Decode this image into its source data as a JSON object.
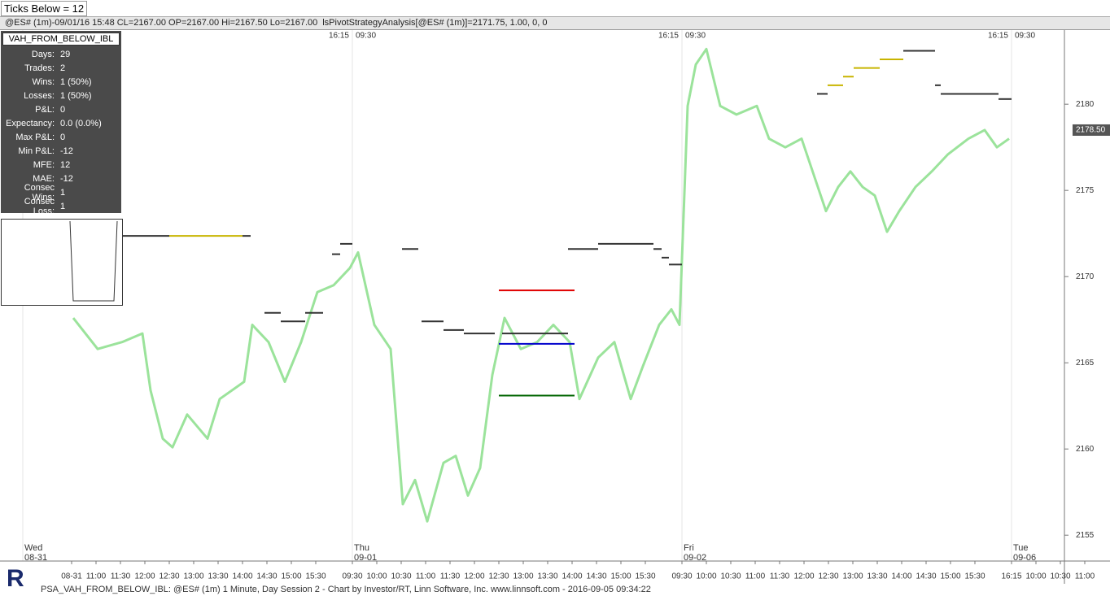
{
  "toolbar": {
    "ticks_below": "Ticks Below = 12"
  },
  "info_bar": {
    "symbol": "@ES# (1m)-09/01/16 15:48 CL=2167.00 OP=2167.00 Hi=2167.50 Lo=2167.00",
    "indicator": "lsPivotStrategyAnalysis[@ES# (1m)]=2171.75, 1.00, 0, 0"
  },
  "stats": {
    "title": "VAH_FROM_BELOW_IBL",
    "rows": [
      [
        "Days:",
        "29"
      ],
      [
        "Trades:",
        "2"
      ],
      [
        "Wins:",
        "1 (50%)"
      ],
      [
        "Losses:",
        "1 (50%)"
      ],
      [
        "P&L:",
        "0"
      ],
      [
        "Expectancy:",
        "0.0 (0.0%)"
      ],
      [
        "Max P&L:",
        "0"
      ],
      [
        "Min P&L:",
        "-12"
      ],
      [
        "MFE:",
        "12"
      ],
      [
        "MAE:",
        "-12"
      ],
      [
        "Consec Wins:",
        "1"
      ],
      [
        "Consec Loss:",
        "1"
      ]
    ]
  },
  "footer": "PSA_VAH_FROM_BELOW_IBL: @ES# (1m) 1 Minute, Day Session 2 - Chart by Investor/RT, Linn Software, Inc. www.linnsoft.com - 2016-09-05 09:34:22",
  "chart_data": {
    "type": "line",
    "x": [
      62,
      92,
      122,
      147,
      157,
      172,
      184,
      202,
      227,
      242,
      272,
      282,
      302,
      322,
      342,
      362,
      382,
      402,
      412,
      432,
      452,
      467,
      482,
      497,
      517,
      532,
      547,
      562,
      577,
      592,
      612,
      632,
      652,
      672,
      684,
      707,
      727,
      747,
      762,
      782,
      797,
      807,
      817,
      827,
      840,
      857,
      877,
      902,
      917,
      937,
      957,
      977,
      987,
      1002,
      1017,
      1032,
      1047,
      1062,
      1077,
      1097,
      1117,
      1137,
      1162,
      1182,
      1197,
      1212
    ],
    "series": [
      {
        "name": "@ES# (1m)",
        "color": "#9be39b",
        "values": [
          2167.6,
          2165.8,
          2166.2,
          2166.7,
          2163.4,
          2160.6,
          2160.1,
          2162,
          2160.6,
          2162.9,
          2163.9,
          2167.2,
          2166.2,
          2163.9,
          2166.2,
          2169.1,
          2169.5,
          2170.5,
          2171.4,
          2167.2,
          2165.8,
          2156.8,
          2158.2,
          2155.8,
          2159.2,
          2159.6,
          2157.3,
          2158.9,
          2164.3,
          2167.6,
          2165.8,
          2166.2,
          2167.2,
          2166.2,
          2162.9,
          2165.3,
          2166.2,
          2162.9,
          2164.8,
          2167.2,
          2168.1,
          2167.2,
          2179.9,
          2182.3,
          2183.2,
          2179.9,
          2179.4,
          2179.9,
          2178,
          2177.5,
          2178,
          2175.2,
          2173.8,
          2175.2,
          2176.1,
          2175.2,
          2174.7,
          2172.6,
          2173.8,
          2175.2,
          2176.1,
          2177.1,
          2178,
          2178.5,
          2177.5,
          2178
        ]
      }
    ],
    "levels": [
      {
        "start": 120,
        "end": 180,
        "value": 2172.36,
        "color": "#333333"
      },
      {
        "start": 180,
        "end": 270,
        "value": 2172.36,
        "color": "#c8b400"
      },
      {
        "start": 270,
        "end": 280,
        "value": 2172.36,
        "color": "#333333"
      },
      {
        "start": 390,
        "end": 405,
        "value": 2171.9,
        "color": "#333333"
      },
      {
        "start": 380,
        "end": 390,
        "value": 2171.3,
        "color": "#333333"
      },
      {
        "start": 466,
        "end": 486,
        "value": 2171.6,
        "color": "#333333"
      },
      {
        "start": 297,
        "end": 317,
        "value": 2167.9,
        "color": "#333333"
      },
      {
        "start": 317,
        "end": 347,
        "value": 2167.4,
        "color": "#333333"
      },
      {
        "start": 347,
        "end": 369,
        "value": 2167.9,
        "color": "#333333"
      },
      {
        "start": 490,
        "end": 517,
        "value": 2167.4,
        "color": "#333333"
      },
      {
        "start": 517,
        "end": 542,
        "value": 2166.9,
        "color": "#333333"
      },
      {
        "start": 542,
        "end": 580,
        "value": 2166.7,
        "color": "#333333"
      },
      {
        "start": 585,
        "end": 678,
        "value": 2169.2,
        "color": "#e00000"
      },
      {
        "start": 589,
        "end": 670,
        "value": 2166.7,
        "color": "#333333"
      },
      {
        "start": 585,
        "end": 678,
        "value": 2166.1,
        "color": "#0000cc"
      },
      {
        "start": 585,
        "end": 678,
        "value": 2163.1,
        "color": "#006400"
      },
      {
        "start": 670,
        "end": 707,
        "value": 2171.6,
        "color": "#333333"
      },
      {
        "start": 707,
        "end": 775,
        "value": 2171.9,
        "color": "#333333"
      },
      {
        "start": 775,
        "end": 785,
        "value": 2171.6,
        "color": "#333333"
      },
      {
        "start": 785,
        "end": 794,
        "value": 2171.1,
        "color": "#333333"
      },
      {
        "start": 794,
        "end": 810,
        "value": 2170.7,
        "color": "#333333"
      },
      {
        "start": 976,
        "end": 989,
        "value": 2180.6,
        "color": "#333333"
      },
      {
        "start": 989,
        "end": 1008,
        "value": 2181.1,
        "color": "#c8b400"
      },
      {
        "start": 1008,
        "end": 1021,
        "value": 2181.6,
        "color": "#c8b400"
      },
      {
        "start": 1021,
        "end": 1053,
        "value": 2182.1,
        "color": "#c8b400"
      },
      {
        "start": 1053,
        "end": 1082,
        "value": 2182.6,
        "color": "#c8b400"
      },
      {
        "start": 1082,
        "end": 1121,
        "value": 2183.1,
        "color": "#333333"
      },
      {
        "start": 1121,
        "end": 1128,
        "value": 2181.1,
        "color": "#333333"
      },
      {
        "start": 1128,
        "end": 1199,
        "value": 2180.6,
        "color": "#333333"
      },
      {
        "start": 1199,
        "end": 1215,
        "value": 2180.3,
        "color": "#333333"
      }
    ],
    "sessions": [
      {
        "x": 405,
        "close": "16:15",
        "open": "09:30"
      },
      {
        "x": 810,
        "close": "16:15",
        "open": "09:30"
      },
      {
        "x": 1215,
        "close": "16:15",
        "open": "09:30"
      }
    ],
    "days": [
      {
        "x": 0,
        "day": "Wed",
        "date": "08-31"
      },
      {
        "x": 405,
        "day": "Thu",
        "date": "09-01"
      },
      {
        "x": 810,
        "day": "Fri",
        "date": "09-02"
      },
      {
        "x": 1215,
        "day": "Tue",
        "date": "09-06"
      }
    ],
    "last_price": {
      "value": 2178.5,
      "label": "2178.50"
    },
    "xlim": [
      -28,
      1317
    ],
    "xticks": [
      {
        "value": 60,
        "label": "08-31"
      },
      {
        "value": 90,
        "label": "11:00"
      },
      {
        "value": 120,
        "label": "11:30"
      },
      {
        "value": 150,
        "label": "12:00"
      },
      {
        "value": 180,
        "label": "12:30"
      },
      {
        "value": 210,
        "label": "13:00"
      },
      {
        "value": 240,
        "label": "13:30"
      },
      {
        "value": 270,
        "label": "14:00"
      },
      {
        "value": 300,
        "label": "14:30"
      },
      {
        "value": 330,
        "label": "15:00"
      },
      {
        "value": 360,
        "label": "15:30"
      },
      {
        "value": 405,
        "label": "09:30"
      },
      {
        "value": 435,
        "label": "10:00"
      },
      {
        "value": 465,
        "label": "10:30"
      },
      {
        "value": 495,
        "label": "11:00"
      },
      {
        "value": 525,
        "label": "11:30"
      },
      {
        "value": 555,
        "label": "12:00"
      },
      {
        "value": 585,
        "label": "12:30"
      },
      {
        "value": 615,
        "label": "13:00"
      },
      {
        "value": 645,
        "label": "13:30"
      },
      {
        "value": 675,
        "label": "14:00"
      },
      {
        "value": 705,
        "label": "14:30"
      },
      {
        "value": 735,
        "label": "15:00"
      },
      {
        "value": 765,
        "label": "15:30"
      },
      {
        "value": 810,
        "label": "09:30"
      },
      {
        "value": 840,
        "label": "10:00"
      },
      {
        "value": 870,
        "label": "10:30"
      },
      {
        "value": 900,
        "label": "11:00"
      },
      {
        "value": 930,
        "label": "11:30"
      },
      {
        "value": 960,
        "label": "12:00"
      },
      {
        "value": 990,
        "label": "12:30"
      },
      {
        "value": 1020,
        "label": "13:00"
      },
      {
        "value": 1050,
        "label": "13:30"
      },
      {
        "value": 1080,
        "label": "14:00"
      },
      {
        "value": 1110,
        "label": "14:30"
      },
      {
        "value": 1140,
        "label": "15:00"
      },
      {
        "value": 1170,
        "label": "15:30"
      },
      {
        "value": 1215,
        "label": "16:15"
      },
      {
        "value": 1245,
        "label": "10:00"
      },
      {
        "value": 1275,
        "label": "10:30"
      },
      {
        "value": 1305,
        "label": "11:00"
      }
    ],
    "ylim": [
      2153.5,
      2184.3
    ],
    "yticks": [
      2155,
      2160,
      2165,
      2170,
      2175,
      2180
    ],
    "grid": false
  }
}
